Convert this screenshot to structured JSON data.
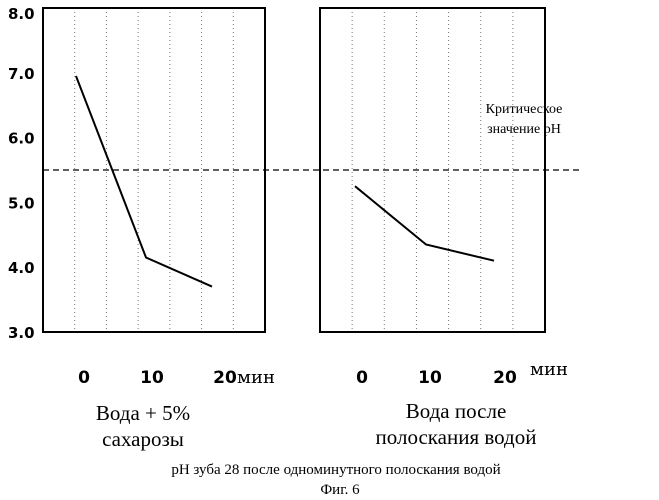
{
  "chart_data": {
    "type": "line",
    "y_ticks": [
      "8.0",
      "7.0",
      "6.0",
      "5.0",
      "4.0",
      "3.0"
    ],
    "ylim": [
      3.0,
      8.0
    ],
    "x_unit": "мин",
    "grid": "dotted vertical",
    "critical_value": 5.5,
    "critical_label": [
      "Критическое",
      "значение рН"
    ],
    "panels": [
      {
        "x_ticks": [
          "0",
          "10",
          "20"
        ],
        "caption": [
          "Вода + 5%",
          "сахарозы"
        ],
        "series": [
          {
            "x": [
              0,
              10,
              20
            ],
            "y": [
              6.95,
              4.15,
              3.7
            ]
          }
        ]
      },
      {
        "x_ticks": [
          "0",
          "10",
          "20"
        ],
        "caption": [
          "Вода после",
          "полоскания водой"
        ],
        "series": [
          {
            "x": [
              0,
              10,
              20
            ],
            "y": [
              5.25,
              4.35,
              4.1
            ]
          }
        ]
      }
    ],
    "footer": "рН зуба 28 после  одноминутного  полоскания водой",
    "figure_label": "Фиг. 6"
  }
}
